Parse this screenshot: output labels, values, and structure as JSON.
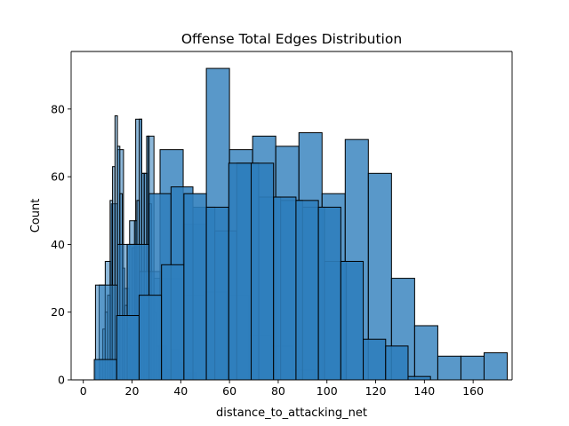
{
  "chart_data": {
    "type": "bar",
    "subtype": "overlapping-histograms",
    "title": "Offense Total Edges Distribution",
    "xlabel": "distance_to_attacking_net",
    "ylabel": "Count",
    "xlim": [
      -5,
      176
    ],
    "ylim": [
      0,
      97
    ],
    "xticks": [
      0,
      20,
      40,
      60,
      80,
      100,
      120,
      140,
      160
    ],
    "yticks": [
      0,
      20,
      40,
      60,
      80
    ],
    "grid": false,
    "legend": "none",
    "colors": {
      "fill": "#2f7ebc",
      "edge": "#000000",
      "axis": "#000000",
      "background": "#ffffff"
    },
    "series": [
      {
        "bins": [
          [
            6.5,
            9.0,
            28
          ],
          [
            9.0,
            11.5,
            35
          ],
          [
            11.5,
            14.0,
            52
          ],
          [
            14.0,
            16.5,
            68
          ],
          [
            16.5,
            19.0,
            27
          ],
          [
            19.0,
            21.5,
            47
          ],
          [
            21.5,
            24.0,
            77
          ],
          [
            24.0,
            26.5,
            61
          ],
          [
            26.5,
            29.0,
            72
          ],
          [
            29.0,
            31.5,
            30
          ],
          [
            31.5,
            34.0,
            10
          ],
          [
            34.0,
            36.5,
            3
          ],
          [
            36.5,
            39.0,
            9
          ],
          [
            39.0,
            41.5,
            5
          ],
          [
            41.5,
            44.0,
            2
          ],
          [
            44.0,
            46.5,
            2
          ]
        ],
        "opacity": 0.55
      },
      {
        "bins": [
          [
            7.0,
            8.0,
            6
          ],
          [
            8.0,
            9.0,
            15
          ],
          [
            9.0,
            10.0,
            20
          ],
          [
            10.0,
            11.0,
            25
          ],
          [
            11.0,
            12.0,
            53
          ],
          [
            12.0,
            13.0,
            63
          ],
          [
            13.0,
            14.0,
            78
          ],
          [
            14.0,
            15.0,
            69
          ],
          [
            15.0,
            16.0,
            55
          ],
          [
            16.0,
            17.0,
            33
          ],
          [
            17.0,
            18.0,
            22
          ],
          [
            18.0,
            19.0,
            15
          ],
          [
            19.0,
            20.0,
            10
          ],
          [
            20.0,
            21.0,
            39
          ],
          [
            21.0,
            22.0,
            47
          ],
          [
            22.0,
            23.0,
            53
          ],
          [
            23.0,
            24.0,
            77
          ],
          [
            24.0,
            25.0,
            61
          ],
          [
            25.0,
            26.0,
            61
          ],
          [
            26.0,
            27.0,
            72
          ],
          [
            27.0,
            28.0,
            52
          ],
          [
            28.0,
            29.0,
            32
          ],
          [
            29.0,
            30.0,
            20
          ],
          [
            30.0,
            31.0,
            10
          ]
        ],
        "opacity": 0.45
      },
      {
        "bins": [
          [
            5,
            14,
            28
          ],
          [
            14,
            23,
            40
          ],
          [
            23,
            32,
            32
          ],
          [
            32,
            41,
            30
          ],
          [
            41,
            50,
            25
          ],
          [
            50,
            59,
            26
          ],
          [
            59,
            68,
            25
          ],
          [
            68,
            77,
            13
          ],
          [
            77,
            86,
            10
          ],
          [
            86,
            95,
            3
          ]
        ],
        "opacity": 0.55
      },
      {
        "bins": [
          [
            31.5,
            41.0,
            68
          ],
          [
            41.0,
            50.5,
            46
          ],
          [
            50.5,
            60.0,
            92
          ],
          [
            60.0,
            69.5,
            68
          ],
          [
            69.5,
            79.0,
            72
          ],
          [
            79.0,
            88.5,
            69
          ],
          [
            88.5,
            98.0,
            73
          ],
          [
            98.0,
            107.5,
            55
          ],
          [
            107.5,
            117.0,
            71
          ],
          [
            117.0,
            126.5,
            61
          ],
          [
            126.5,
            136.0,
            30
          ],
          [
            136.0,
            145.5,
            16
          ],
          [
            145.5,
            155.0,
            7
          ],
          [
            155.0,
            164.5,
            7
          ],
          [
            164.5,
            174.0,
            8
          ]
        ],
        "opacity": 0.8
      },
      {
        "bins": [
          [
            18,
            27,
            40
          ],
          [
            27,
            36,
            55
          ],
          [
            36,
            45,
            57
          ],
          [
            45,
            54,
            51
          ],
          [
            54,
            63,
            44
          ],
          [
            63,
            72,
            64
          ],
          [
            72,
            81,
            54
          ],
          [
            81,
            90,
            53
          ],
          [
            90,
            99,
            51
          ],
          [
            99,
            108,
            35
          ]
        ],
        "opacity": 0.85
      },
      {
        "bins": [
          [
            4.5,
            13.7,
            6
          ],
          [
            13.7,
            22.9,
            19
          ],
          [
            22.9,
            32.1,
            25
          ],
          [
            32.1,
            41.3,
            34
          ],
          [
            41.3,
            50.5,
            55
          ],
          [
            50.5,
            59.7,
            51
          ],
          [
            59.7,
            68.9,
            64
          ],
          [
            68.9,
            78.1,
            64
          ],
          [
            78.1,
            87.3,
            54
          ],
          [
            87.3,
            96.5,
            53
          ],
          [
            96.5,
            105.7,
            51
          ],
          [
            105.7,
            114.9,
            35
          ],
          [
            114.9,
            124.1,
            12
          ],
          [
            124.1,
            133.3,
            10
          ],
          [
            133.3,
            142.5,
            1
          ]
        ],
        "opacity": 0.9
      }
    ]
  }
}
